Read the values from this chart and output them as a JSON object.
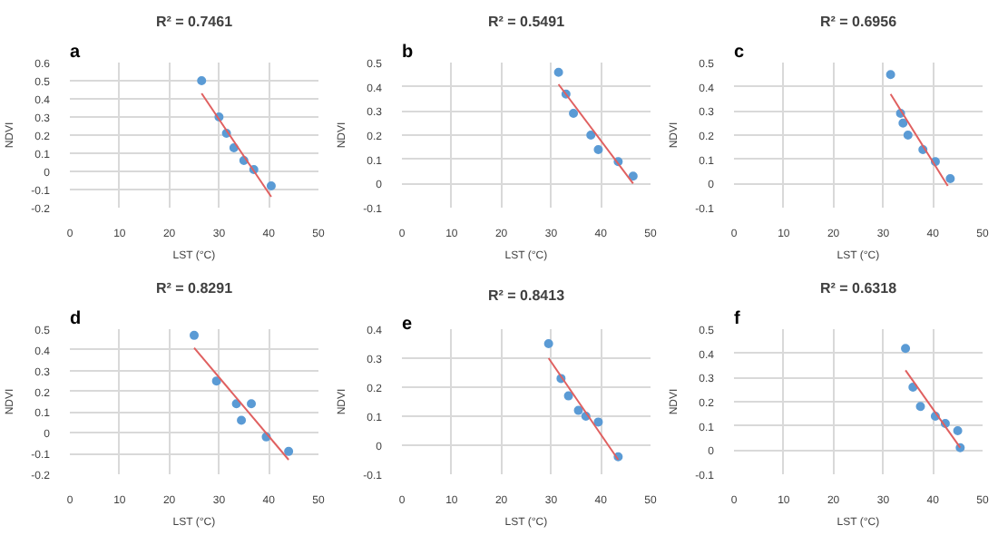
{
  "chart_data": [
    {
      "type": "scatter",
      "title": "R² = 0.7461",
      "annotations": [
        "a"
      ],
      "xlabel": "LST (°C)",
      "ylabel": "NDVI",
      "xlim": [
        0,
        50
      ],
      "xticks": [
        0,
        10,
        20,
        30,
        40,
        50
      ],
      "ylim": [
        -0.2,
        0.6
      ],
      "yticks": [
        -0.2,
        -0.1,
        0,
        0.1,
        0.2,
        0.3,
        0.4,
        0.5,
        0.6
      ],
      "grid": true,
      "series": [
        {
          "marker": "circle",
          "color": "#5b9bd5",
          "x": [
            26.5,
            30,
            31.5,
            33,
            35,
            37,
            40.5
          ],
          "values": [
            0.5,
            0.3,
            0.21,
            0.13,
            0.06,
            0.01,
            -0.08
          ]
        },
        {
          "type": "line",
          "color": "#e06060",
          "x": [
            26.5,
            40.5
          ],
          "values": [
            0.43,
            -0.14
          ]
        }
      ]
    },
    {
      "type": "scatter",
      "title": "R² = 0.5491",
      "annotations": [
        "b"
      ],
      "xlabel": "LST (°C)",
      "ylabel": "NDVI",
      "xlim": [
        0,
        50
      ],
      "xticks": [
        0,
        10,
        20,
        30,
        40,
        50
      ],
      "ylim": [
        -0.1,
        0.5
      ],
      "yticks": [
        -0.1,
        0,
        0.1,
        0.2,
        0.3,
        0.4,
        0.5
      ],
      "grid": true,
      "series": [
        {
          "marker": "circle",
          "color": "#5b9bd5",
          "x": [
            31.5,
            33,
            34.5,
            38,
            39.5,
            43.5,
            46.5
          ],
          "values": [
            0.46,
            0.37,
            0.29,
            0.2,
            0.14,
            0.09,
            0.03
          ]
        },
        {
          "type": "line",
          "color": "#e06060",
          "x": [
            31.5,
            46.5
          ],
          "values": [
            0.41,
            0.0
          ]
        }
      ]
    },
    {
      "type": "scatter",
      "title": "R² = 0.6956",
      "annotations": [
        "c"
      ],
      "xlabel": "LST (°C)",
      "ylabel": "NDVI",
      "xlim": [
        0,
        50
      ],
      "xticks": [
        0,
        10,
        20,
        30,
        40,
        50
      ],
      "ylim": [
        -0.1,
        0.5
      ],
      "yticks": [
        -0.1,
        0,
        0.1,
        0.2,
        0.3,
        0.4,
        0.5
      ],
      "grid": true,
      "series": [
        {
          "marker": "circle",
          "color": "#5b9bd5",
          "x": [
            31.5,
            33.5,
            34,
            35,
            38,
            40.5,
            43.5
          ],
          "values": [
            0.45,
            0.29,
            0.25,
            0.2,
            0.14,
            0.09,
            0.02
          ]
        },
        {
          "type": "line",
          "color": "#e06060",
          "x": [
            31.5,
            43
          ],
          "values": [
            0.37,
            -0.01
          ]
        }
      ]
    },
    {
      "type": "scatter",
      "title": "R² = 0.8291",
      "annotations": [
        "d"
      ],
      "xlabel": "LST (°C)",
      "ylabel": "NDVI",
      "xlim": [
        0,
        50
      ],
      "xticks": [
        0,
        10,
        20,
        30,
        40,
        50
      ],
      "ylim": [
        -0.2,
        0.5
      ],
      "yticks": [
        -0.2,
        -0.1,
        0,
        0.1,
        0.2,
        0.3,
        0.4,
        0.5
      ],
      "grid": true,
      "series": [
        {
          "marker": "circle",
          "color": "#5b9bd5",
          "x": [
            25,
            29.5,
            33.5,
            34.5,
            36.5,
            39.5,
            44
          ],
          "values": [
            0.47,
            0.25,
            0.14,
            0.06,
            0.14,
            -0.02,
            -0.09
          ]
        },
        {
          "type": "line",
          "color": "#e06060",
          "x": [
            25,
            44
          ],
          "values": [
            0.41,
            -0.13
          ]
        }
      ]
    },
    {
      "type": "scatter",
      "title": "R² = 0.8413",
      "annotations": [
        "e"
      ],
      "xlabel": "LST (°C)",
      "ylabel": "NDVI",
      "xlim": [
        0,
        50
      ],
      "xticks": [
        0,
        10,
        20,
        30,
        40,
        50
      ],
      "ylim": [
        -0.1,
        0.4
      ],
      "yticks": [
        -0.1,
        0,
        0.1,
        0.2,
        0.3,
        0.4
      ],
      "grid": true,
      "series": [
        {
          "marker": "circle",
          "color": "#5b9bd5",
          "x": [
            29.5,
            32,
            33.5,
            35.5,
            37,
            39.5,
            43.5
          ],
          "values": [
            0.35,
            0.23,
            0.17,
            0.12,
            0.1,
            0.08,
            -0.04
          ]
        },
        {
          "type": "line",
          "color": "#e06060",
          "x": [
            29.5,
            43.5
          ],
          "values": [
            0.3,
            -0.05
          ]
        }
      ]
    },
    {
      "type": "scatter",
      "title": "R² = 0.6318",
      "annotations": [
        "f"
      ],
      "xlabel": "LST (°C)",
      "ylabel": "NDVI",
      "xlim": [
        0,
        50
      ],
      "xticks": [
        0,
        10,
        20,
        30,
        40,
        50
      ],
      "ylim": [
        -0.1,
        0.5
      ],
      "yticks": [
        -0.1,
        0,
        0.1,
        0.2,
        0.3,
        0.4,
        0.5
      ],
      "grid": true,
      "series": [
        {
          "marker": "circle",
          "color": "#5b9bd5",
          "x": [
            34.5,
            36,
            37.5,
            40.5,
            42.5,
            45,
            45.5
          ],
          "values": [
            0.42,
            0.26,
            0.18,
            0.14,
            0.11,
            0.08,
            0.01
          ]
        },
        {
          "type": "line",
          "color": "#e06060",
          "x": [
            34.5,
            45.5
          ],
          "values": [
            0.33,
            0.01
          ]
        }
      ]
    }
  ]
}
